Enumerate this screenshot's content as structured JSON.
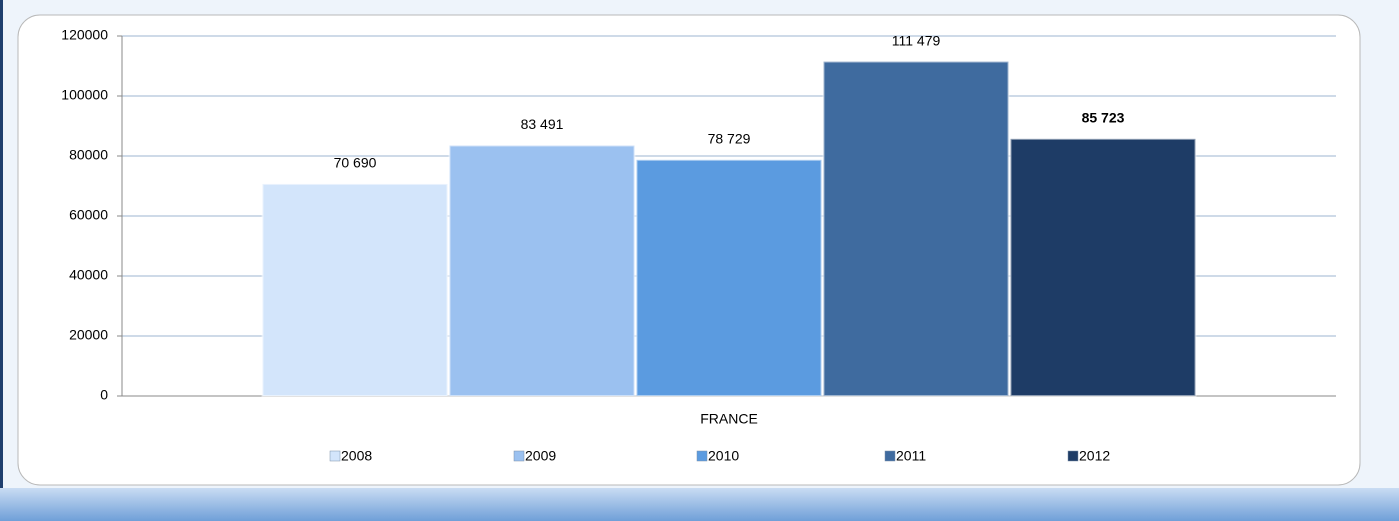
{
  "chart_data": {
    "type": "bar",
    "categories": [
      "FRANCE"
    ],
    "series": [
      {
        "name": "2008",
        "color": "#d3e5fb",
        "values": [
          70690
        ],
        "value_labels": [
          "70 690"
        ]
      },
      {
        "name": "2009",
        "color": "#9bc1f0",
        "values": [
          83491
        ],
        "value_labels": [
          "83 491"
        ]
      },
      {
        "name": "2010",
        "color": "#5b9be0",
        "values": [
          78729
        ],
        "value_labels": [
          "78 729"
        ]
      },
      {
        "name": "2011",
        "color": "#3f6b9f",
        "values": [
          111479
        ],
        "value_labels": [
          "111 479"
        ]
      },
      {
        "name": "2012",
        "color": "#1e3c66",
        "values": [
          85723
        ],
        "value_labels": [
          "85 723"
        ]
      }
    ],
    "ylim": [
      0,
      120000
    ],
    "yticks": [
      0,
      20000,
      40000,
      60000,
      80000,
      100000,
      120000
    ],
    "grid": true,
    "legend": "bottom"
  }
}
